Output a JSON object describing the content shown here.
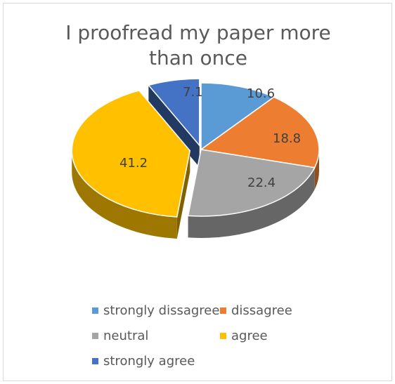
{
  "chart_data": {
    "type": "pie",
    "title": "I proofread my paper more than once",
    "categories": [
      "strongly dissagree",
      "dissagree",
      "neutral",
      "agree",
      "strongly agree"
    ],
    "values": [
      10.6,
      18.8,
      22.4,
      41.2,
      7.1
    ],
    "data_labels": [
      "10.6",
      "18.8",
      "22.4",
      "41.2",
      "7.1"
    ],
    "colors": [
      "#5b9bd5",
      "#ed7d31",
      "#a5a5a5",
      "#ffc000",
      "#4472c4"
    ],
    "exploded": [
      "agree",
      "strongly agree"
    ],
    "style": "3d",
    "legend_position": "bottom"
  }
}
